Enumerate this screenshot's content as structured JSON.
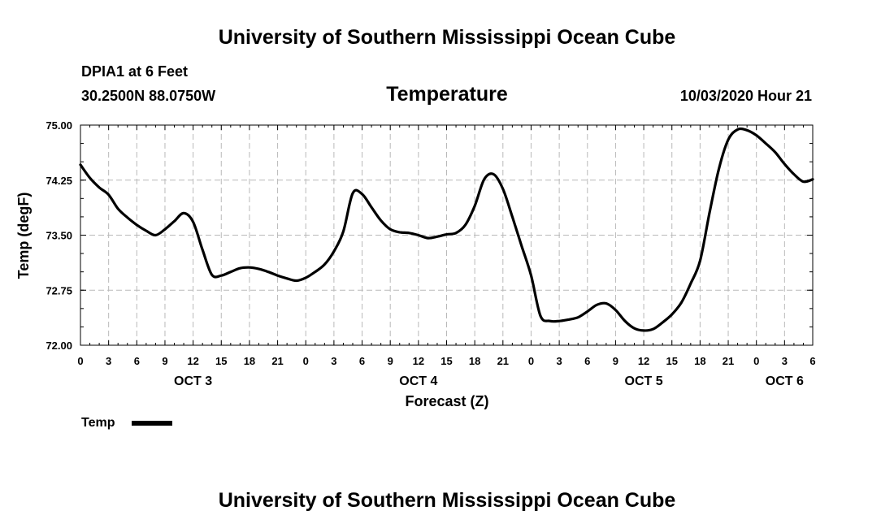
{
  "header": {
    "title_top": "University of Southern Mississippi Ocean Cube",
    "title_bottom": "University of Southern Mississippi Ocean Cube",
    "station": "DPIA1 at 6 Feet",
    "coords": "30.2500N 88.0750W",
    "datetime": "10/03/2020 Hour 21"
  },
  "chart_data": {
    "type": "line",
    "title": "Temperature",
    "xlabel": "Forecast (Z)",
    "ylabel": "Temp (degF)",
    "xlim": [
      0,
      78
    ],
    "ylim": [
      72.0,
      75.0
    ],
    "y_ticks": [
      "72.00",
      "72.75",
      "73.50",
      "74.25",
      "75.00"
    ],
    "x_ticks": [
      "0",
      "3",
      "6",
      "9",
      "12",
      "15",
      "18",
      "21",
      "0",
      "3",
      "6",
      "9",
      "12",
      "15",
      "18",
      "21",
      "0",
      "3",
      "6",
      "9",
      "12",
      "15",
      "18",
      "21",
      "0",
      "3",
      "6"
    ],
    "day_labels": [
      {
        "label": "OCT 3",
        "hour": 12
      },
      {
        "label": "OCT 4",
        "hour": 36
      },
      {
        "label": "OCT 5",
        "hour": 60
      },
      {
        "label": "OCT 6",
        "hour": 75
      }
    ],
    "grid": true,
    "legend": "bottom-left",
    "series": [
      {
        "name": "Temp",
        "color": "#000000",
        "x": [
          0,
          1,
          2,
          3,
          4,
          5,
          6,
          7,
          8,
          9,
          10,
          11,
          12,
          13,
          14,
          15,
          16,
          17,
          18,
          19,
          20,
          21,
          22,
          23,
          24,
          25,
          26,
          27,
          28,
          29,
          30,
          31,
          32,
          33,
          34,
          35,
          36,
          37,
          38,
          39,
          40,
          41,
          42,
          43,
          44,
          45,
          46,
          47,
          48,
          49,
          50,
          51,
          52,
          53,
          54,
          55,
          56,
          57,
          58,
          59,
          60,
          61,
          62,
          63,
          64,
          65,
          66,
          67,
          68,
          69,
          70,
          71,
          72,
          73,
          74,
          75,
          76,
          77,
          78
        ],
        "values": [
          74.46,
          74.28,
          74.15,
          74.05,
          73.86,
          73.74,
          73.64,
          73.56,
          73.5,
          73.58,
          73.69,
          73.8,
          73.68,
          73.3,
          72.96,
          72.95,
          73.0,
          73.05,
          73.06,
          73.04,
          73.0,
          72.95,
          72.91,
          72.88,
          72.92,
          73.0,
          73.1,
          73.28,
          73.55,
          74.07,
          74.06,
          73.88,
          73.7,
          73.58,
          73.54,
          73.53,
          73.5,
          73.46,
          73.48,
          73.51,
          73.53,
          73.64,
          73.9,
          74.26,
          74.33,
          74.13,
          73.75,
          73.35,
          72.95,
          72.4,
          72.33,
          72.33,
          72.35,
          72.38,
          72.46,
          72.55,
          72.57,
          72.48,
          72.33,
          72.23,
          72.2,
          72.22,
          72.31,
          72.42,
          72.58,
          72.84,
          73.15,
          73.8,
          74.4,
          74.8,
          74.94,
          74.93,
          74.86,
          74.75,
          74.63,
          74.47,
          74.33,
          74.23,
          74.26
        ]
      }
    ]
  }
}
